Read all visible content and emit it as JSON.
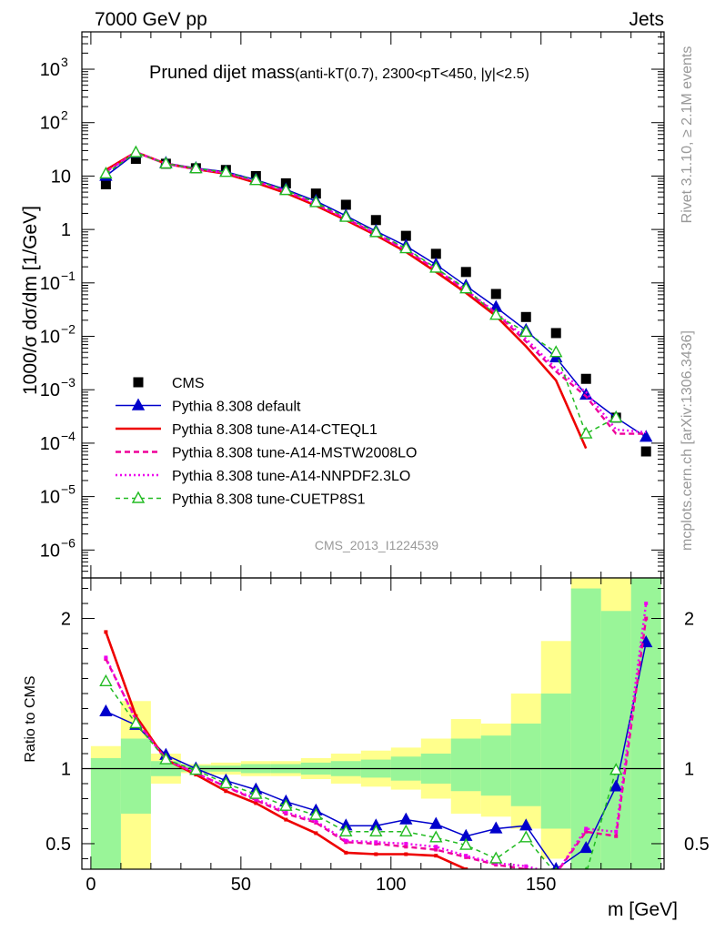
{
  "header": {
    "left": "7000 GeV pp",
    "right": "Jets"
  },
  "side_labels": {
    "rivet": "Rivet 3.1.10, ≥ 2.1M events",
    "mcplots": "mcplots.cern.ch [arXiv:1306.3436]"
  },
  "chart_data": {
    "type": "line",
    "title_main": "Pruned dijet mass",
    "title_cuts": "(anti-kT(0.7), 2300<pT<450, |y|<2.5)",
    "analysis_id": "CMS_2013_I1224539",
    "xlabel": "m [GeV]",
    "xlim": [
      -3,
      191
    ],
    "x_ticks": [
      0,
      50,
      100,
      150
    ],
    "x": [
      5,
      15,
      25,
      35,
      45,
      55,
      65,
      75,
      85,
      95,
      105,
      115,
      125,
      135,
      145,
      155,
      165,
      175,
      185
    ],
    "upper": {
      "ylabel": "1000/σ dσ/dm [1/GeV]",
      "yscale": "log",
      "ylim": [
        3e-07,
        5000
      ],
      "y_ticks": [
        {
          "v": 1e-06,
          "label": "10",
          "exp": "−6"
        },
        {
          "v": 1e-05,
          "label": "10",
          "exp": "−5"
        },
        {
          "v": 0.0001,
          "label": "10",
          "exp": "−4"
        },
        {
          "v": 0.001,
          "label": "10",
          "exp": "−3"
        },
        {
          "v": 0.01,
          "label": "10",
          "exp": "−2"
        },
        {
          "v": 0.1,
          "label": "10",
          "exp": "−1"
        },
        {
          "v": 1,
          "label": "1",
          "exp": ""
        },
        {
          "v": 10,
          "label": "10",
          "exp": ""
        },
        {
          "v": 100,
          "label": "10",
          "exp": "2"
        },
        {
          "v": 1000,
          "label": "10",
          "exp": "3"
        }
      ],
      "series": [
        {
          "name": "CMS",
          "color": "#000000",
          "style": "square",
          "values": [
            7,
            21,
            17,
            14,
            13,
            10,
            7.3,
            4.7,
            2.9,
            1.5,
            0.76,
            0.35,
            0.16,
            0.062,
            0.023,
            0.0115,
            0.0016,
            0.0003,
            7e-05
          ]
        },
        {
          "name": "Pythia 8.308 default",
          "color": "#0000cc",
          "style": "solid-triangle",
          "values": [
            10,
            27,
            17.5,
            14,
            12,
            8.5,
            5.6,
            3.4,
            1.8,
            0.93,
            0.49,
            0.22,
            0.088,
            0.035,
            0.013,
            0.004,
            0.0008,
            0.0003,
            0.00013
          ]
        },
        {
          "name": "Pythia 8.308 tune-A14-CTEQL1",
          "color": "#ee0000",
          "style": "solid",
          "values": [
            13,
            28,
            17,
            13.5,
            11,
            7.5,
            4.8,
            2.8,
            1.5,
            0.78,
            0.38,
            0.16,
            0.065,
            0.024,
            0.0065,
            0.0015,
            8e-05,
            null,
            null
          ]
        },
        {
          "name": "Pythia 8.308 tune-A14-MSTW2008LO",
          "color": "#ee0099",
          "style": "dashed",
          "values": [
            12,
            28,
            17,
            13.5,
            11.5,
            8,
            5.2,
            3.0,
            1.6,
            0.83,
            0.41,
            0.18,
            0.072,
            0.027,
            0.008,
            0.0022,
            0.00075,
            0.00015,
            0.00015
          ]
        },
        {
          "name": "Pythia 8.308 tune-A14-NNPDF2.3LO",
          "color": "#ee00ee",
          "style": "dotted",
          "values": [
            12,
            28,
            17,
            13.5,
            11.5,
            8,
            5.2,
            3.0,
            1.6,
            0.84,
            0.42,
            0.18,
            0.073,
            0.028,
            0.009,
            0.0025,
            0.0009,
            0.00018,
            0.00016
          ]
        },
        {
          "name": "Pythia 8.308 tune-CUETP8S1",
          "color": "#22bb22",
          "style": "dashed-open-triangle",
          "values": [
            11,
            27.5,
            17,
            13.8,
            11.8,
            8.3,
            5.4,
            3.2,
            1.7,
            0.88,
            0.44,
            0.19,
            0.078,
            0.025,
            0.012,
            0.005,
            0.00015,
            0.0003,
            null
          ]
        }
      ]
    },
    "ratio": {
      "ylabel": "Ratio to CMS",
      "ylim": [
        0.33,
        2.27
      ],
      "y_ticks": [
        0.5,
        1,
        2
      ],
      "band_outer": [
        [
          0.85,
          1.15
        ],
        [
          0.3,
          1.45
        ],
        [
          0.9,
          1.1
        ],
        [
          0.97,
          1.03
        ],
        [
          0.96,
          1.04
        ],
        [
          0.95,
          1.05
        ],
        [
          0.95,
          1.05
        ],
        [
          0.93,
          1.07
        ],
        [
          0.9,
          1.1
        ],
        [
          0.88,
          1.12
        ],
        [
          0.86,
          1.14
        ],
        [
          0.8,
          1.2
        ],
        [
          0.7,
          1.33
        ],
        [
          0.68,
          1.3
        ],
        [
          0.6,
          1.5
        ],
        [
          0.4,
          1.85
        ],
        [
          0.3,
          2.3
        ],
        [
          0.3,
          2.3
        ],
        [
          0.3,
          2.3
        ]
      ],
      "band_inner": [
        [
          0.3,
          1.07
        ],
        [
          0.7,
          1.2
        ],
        [
          0.95,
          1.05
        ],
        [
          0.98,
          1.02
        ],
        [
          0.98,
          1.02
        ],
        [
          0.97,
          1.03
        ],
        [
          0.97,
          1.03
        ],
        [
          0.96,
          1.04
        ],
        [
          0.95,
          1.05
        ],
        [
          0.94,
          1.06
        ],
        [
          0.92,
          1.08
        ],
        [
          0.9,
          1.1
        ],
        [
          0.85,
          1.2
        ],
        [
          0.82,
          1.22
        ],
        [
          0.75,
          1.3
        ],
        [
          0.6,
          1.5
        ],
        [
          0.3,
          2.2
        ],
        [
          0.3,
          2.05
        ],
        [
          0.3,
          2.3
        ]
      ],
      "series": [
        {
          "name": "Pythia 8.308 default",
          "values": [
            1.38,
            1.29,
            1.09,
            1.0,
            0.92,
            0.86,
            0.78,
            0.72,
            0.62,
            0.62,
            0.66,
            0.63,
            0.55,
            0.6,
            0.62,
            0.33,
            0.47,
            0.88,
            1.84
          ]
        },
        {
          "name": "Pythia 8.308 tune-A14-CTEQL1",
          "values": [
            1.91,
            1.35,
            1.06,
            0.96,
            0.85,
            0.77,
            0.66,
            0.57,
            0.44,
            0.43,
            0.43,
            0.42,
            0.33,
            null,
            null,
            null,
            null,
            null,
            null
          ]
        },
        {
          "name": "Pythia 8.308 tune-A14-MSTW2008LO",
          "values": [
            1.73,
            1.33,
            1.06,
            0.97,
            0.88,
            0.79,
            0.7,
            0.64,
            0.51,
            0.5,
            0.48,
            0.46,
            0.41,
            0.36,
            0.33,
            0.3,
            0.58,
            0.55,
            2.0
          ]
        },
        {
          "name": "Pythia 8.308 tune-A14-NNPDF2.3LO",
          "values": [
            1.74,
            1.32,
            1.06,
            0.97,
            0.88,
            0.8,
            0.71,
            0.65,
            0.52,
            0.51,
            0.5,
            0.48,
            0.42,
            0.37,
            0.35,
            0.3,
            0.6,
            0.58,
            2.1
          ]
        },
        {
          "name": "Pythia 8.308 tune-CUETP8S1",
          "values": [
            1.58,
            1.3,
            1.06,
            0.99,
            0.9,
            0.83,
            0.75,
            0.69,
            0.58,
            0.58,
            0.58,
            0.54,
            0.49,
            0.4,
            0.54,
            0.3,
            0.3,
            0.99,
            null
          ]
        }
      ]
    }
  }
}
